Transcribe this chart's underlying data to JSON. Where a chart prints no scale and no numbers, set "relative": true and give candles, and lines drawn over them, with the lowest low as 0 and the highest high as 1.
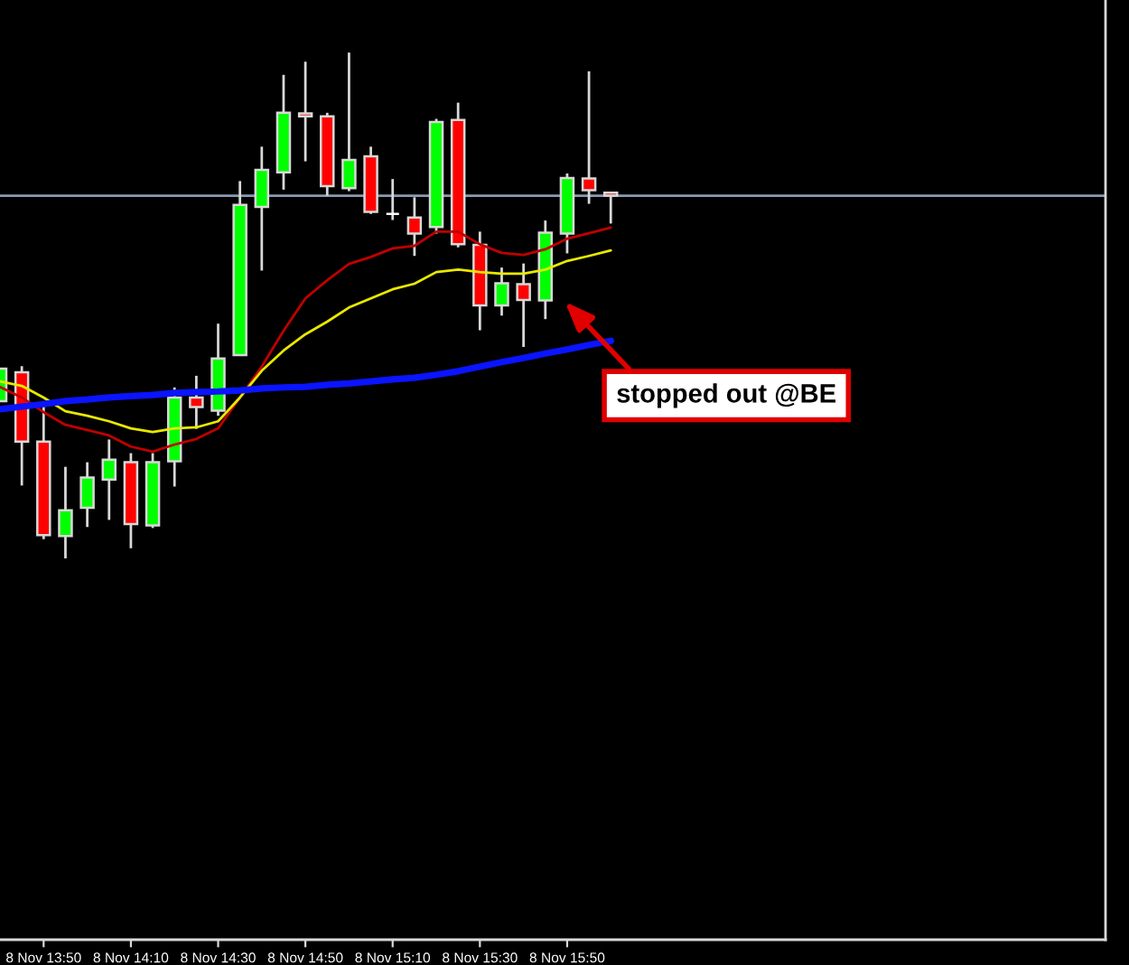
{
  "chart_data": {
    "type": "candlestick",
    "relative": true,
    "categories": [
      null,
      null,
      "8 Nov 13:50",
      null,
      null,
      null,
      "8 Nov 14:10",
      null,
      null,
      null,
      "8 Nov 14:30",
      null,
      null,
      null,
      "8 Nov 14:50",
      null,
      null,
      null,
      "8 Nov 15:10",
      null,
      null,
      null,
      "8 Nov 15:30",
      null,
      null,
      null,
      "8 Nov 15:50",
      null,
      null
    ],
    "ohlc": [
      [
        0.311,
        0.375,
        0.311,
        0.375
      ],
      [
        0.368,
        0.38,
        0.144,
        0.231
      ],
      [
        0.231,
        0.304,
        0.038,
        0.046
      ],
      [
        0.044,
        0.181,
        0.0,
        0.095
      ],
      [
        0.1,
        0.19,
        0.062,
        0.16
      ],
      [
        0.156,
        0.235,
        0.076,
        0.195
      ],
      [
        0.19,
        0.208,
        0.02,
        0.068
      ],
      [
        0.065,
        0.208,
        0.06,
        0.19
      ],
      [
        0.192,
        0.338,
        0.142,
        0.318
      ],
      [
        0.318,
        0.361,
        0.256,
        0.299
      ],
      [
        0.292,
        0.464,
        0.282,
        0.395
      ],
      [
        0.402,
        0.746,
        0.402,
        0.699
      ],
      [
        0.695,
        0.814,
        0.569,
        0.768
      ],
      [
        0.763,
        0.956,
        0.729,
        0.881
      ],
      [
        0.88,
        0.982,
        0.785,
        0.874
      ],
      [
        0.874,
        0.881,
        0.717,
        0.736
      ],
      [
        0.732,
        1.0,
        0.726,
        0.788
      ],
      [
        0.795,
        0.814,
        0.681,
        0.685
      ],
      [
        0.681,
        0.75,
        0.669,
        0.681
      ],
      [
        0.674,
        0.714,
        0.598,
        0.642
      ],
      [
        0.655,
        0.869,
        0.642,
        0.863
      ],
      [
        0.867,
        0.901,
        0.615,
        0.621
      ],
      [
        0.62,
        0.646,
        0.451,
        0.5
      ],
      [
        0.5,
        0.575,
        0.48,
        0.544
      ],
      [
        0.542,
        0.583,
        0.418,
        0.511
      ],
      [
        0.51,
        0.668,
        0.473,
        0.644
      ],
      [
        0.642,
        0.761,
        0.603,
        0.752
      ],
      [
        0.751,
        0.963,
        0.701,
        0.728
      ],
      [
        0.723,
        0.723,
        0.662,
        0.717
      ]
    ],
    "colors": [
      "#00ff00",
      "#ff0000",
      "#ff0000",
      "#00ff00",
      "#00ff00",
      "#00ff00",
      "#ff0000",
      "#00ff00",
      "#00ff00",
      "#ff0000",
      "#00ff00",
      "#00ff00",
      "#00ff00",
      "#00ff00",
      "#ff0000",
      "#ff0000",
      "#00ff00",
      "#ff0000",
      "#ffffff",
      "#ff0000",
      "#00ff00",
      "#ff0000",
      "#ff0000",
      "#00ff00",
      "#ff0000",
      "#00ff00",
      "#00ff00",
      "#ff0000",
      "#ff0000"
    ],
    "series": [
      {
        "type": "line",
        "color": "#c00000",
        "values": [
          0.339,
          0.318,
          0.289,
          0.264,
          0.254,
          0.243,
          0.221,
          0.211,
          0.225,
          0.236,
          0.257,
          0.318,
          0.379,
          0.45,
          0.514,
          0.55,
          0.582,
          0.596,
          0.613,
          0.618,
          0.646,
          0.646,
          0.621,
          0.604,
          0.6,
          0.611,
          0.632,
          0.643,
          0.654
        ]
      },
      {
        "type": "line",
        "color": "#e8e800",
        "values": [
          0.35,
          0.341,
          0.318,
          0.291,
          0.282,
          0.271,
          0.257,
          0.25,
          0.257,
          0.259,
          0.271,
          0.318,
          0.371,
          0.411,
          0.443,
          0.468,
          0.496,
          0.514,
          0.532,
          0.543,
          0.566,
          0.571,
          0.566,
          0.563,
          0.563,
          0.571,
          0.588,
          0.598,
          0.609
        ]
      },
      {
        "type": "line",
        "color": "#0a14ff",
        "values": [
          0.295,
          0.3,
          0.305,
          0.311,
          0.314,
          0.318,
          0.321,
          0.323,
          0.327,
          0.329,
          0.33,
          0.332,
          0.336,
          0.338,
          0.339,
          0.343,
          0.346,
          0.35,
          0.354,
          0.357,
          0.363,
          0.37,
          0.379,
          0.388,
          0.396,
          0.405,
          0.413,
          0.422,
          0.43
        ]
      }
    ],
    "ref_lines": [
      {
        "axis": "y",
        "value": 0.717,
        "color": "#8a9ab0"
      }
    ],
    "annotations": [
      "stopped out @BE"
    ]
  }
}
